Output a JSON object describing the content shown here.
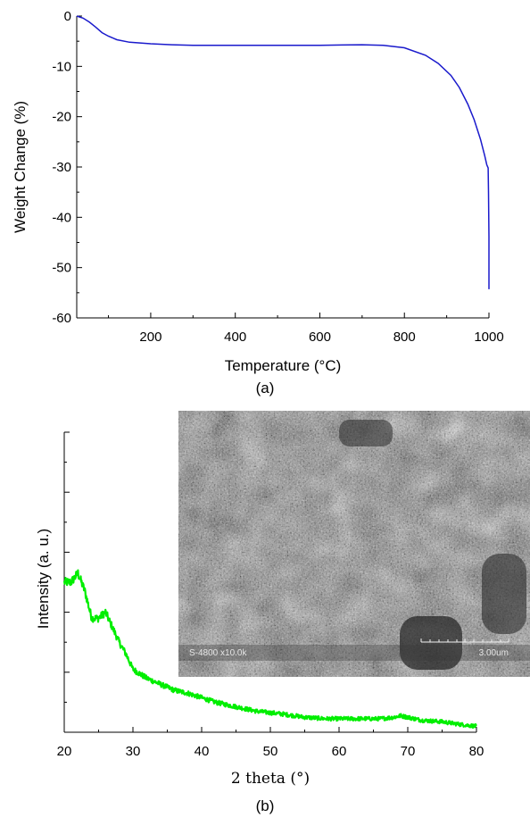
{
  "chart_data": [
    {
      "type": "line",
      "panel_label": "(a)",
      "title": "",
      "xlabel": "Temperature (°C)",
      "ylabel": "Weight Change (%)",
      "xlim": [
        25,
        1000
      ],
      "ylim": [
        -60,
        0
      ],
      "x_ticks": [
        200,
        400,
        600,
        800,
        1000
      ],
      "y_ticks": [
        0,
        -10,
        -20,
        -30,
        -40,
        -50,
        -60
      ],
      "grid": false,
      "colors": {
        "line": "#1a1acc"
      },
      "series": [
        {
          "x": [
            25,
            40,
            55,
            70,
            85,
            100,
            120,
            150,
            200,
            250,
            300,
            400,
            500,
            600,
            700,
            750,
            800,
            850,
            880,
            910,
            930,
            950,
            965,
            980,
            990,
            995,
            998,
            999,
            1000,
            1000,
            1000
          ],
          "y": [
            0,
            -0.4,
            -1.2,
            -2.2,
            -3.3,
            -4.0,
            -4.7,
            -5.2,
            -5.5,
            -5.7,
            -5.8,
            -5.8,
            -5.8,
            -5.8,
            -5.7,
            -5.8,
            -6.3,
            -7.8,
            -9.4,
            -11.8,
            -14.2,
            -17.5,
            -20.6,
            -24.5,
            -27.8,
            -29.6,
            -30.2,
            -35.0,
            -44.0,
            -50.0,
            -54.3
          ]
        }
      ]
    },
    {
      "type": "line",
      "panel_label": "(b)",
      "title": "",
      "xlabel": "2 theta (°)",
      "ylabel": "Intensity (a. u.)",
      "xlim": [
        20,
        80
      ],
      "ylim": [
        0,
        100
      ],
      "x_ticks": [
        20,
        30,
        40,
        50,
        60,
        70,
        80
      ],
      "grid": false,
      "colors": {
        "line": "#00ee00"
      },
      "series": [
        {
          "x": [
            20,
            21,
            22,
            23,
            24,
            25,
            26,
            27,
            28,
            29,
            30,
            32,
            34,
            36,
            38,
            40,
            42,
            44,
            46,
            48,
            50,
            52,
            55,
            58,
            60,
            63,
            66,
            68,
            69,
            70,
            72,
            75,
            78,
            80
          ],
          "y": [
            50,
            50,
            53,
            47,
            38,
            38,
            40,
            35,
            30,
            26,
            21,
            18,
            16,
            14,
            13,
            11.5,
            10,
            9,
            8,
            7,
            6.5,
            6,
            5,
            4.5,
            4.5,
            4.5,
            4.5,
            5,
            5.5,
            5,
            4,
            3.5,
            2.5,
            2
          ]
        }
      ],
      "inset": {
        "type": "sem-micrograph",
        "instrument_label": "S-4800 x10.0k",
        "scale_label": "3.00um"
      }
    }
  ]
}
